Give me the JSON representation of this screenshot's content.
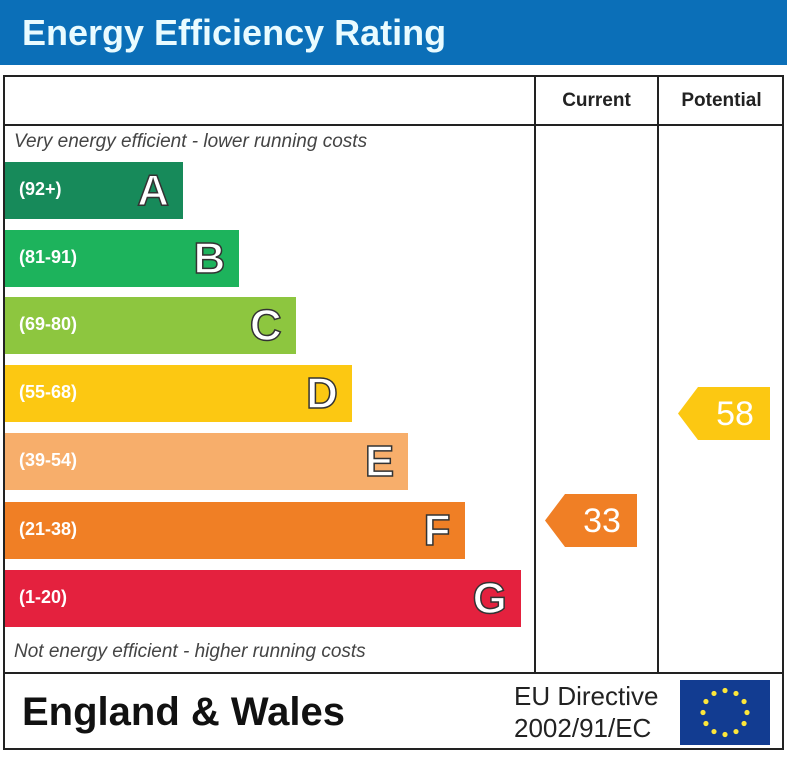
{
  "title": "Energy Efficiency Rating",
  "columns": {
    "current": "Current",
    "potential": "Potential"
  },
  "top_note": "Very energy efficient - lower running costs",
  "bottom_note": "Not energy efficient - higher running costs",
  "footer": {
    "region": "England & Wales",
    "directive_line1": "EU Directive",
    "directive_line2": "2002/91/EC",
    "flag_icon": "eu-flag-icon"
  },
  "chart_data": {
    "type": "bar",
    "title": "Energy Efficiency Rating",
    "bands": [
      {
        "letter": "A",
        "range": "(92+)",
        "color": "#178a5a"
      },
      {
        "letter": "B",
        "range": "(81-91)",
        "color": "#1db35c"
      },
      {
        "letter": "C",
        "range": "(69-80)",
        "color": "#8dc63f"
      },
      {
        "letter": "D",
        "range": "(55-68)",
        "color": "#fcc812"
      },
      {
        "letter": "E",
        "range": "(39-54)",
        "color": "#f7ae6b"
      },
      {
        "letter": "F",
        "range": "(21-38)",
        "color": "#f07f25"
      },
      {
        "letter": "G",
        "range": "(1-20)",
        "color": "#e4213e"
      }
    ],
    "current": {
      "value": "33",
      "band": "F",
      "color": "#f07f25"
    },
    "potential": {
      "value": "58",
      "band": "D",
      "color": "#fcc812"
    }
  }
}
